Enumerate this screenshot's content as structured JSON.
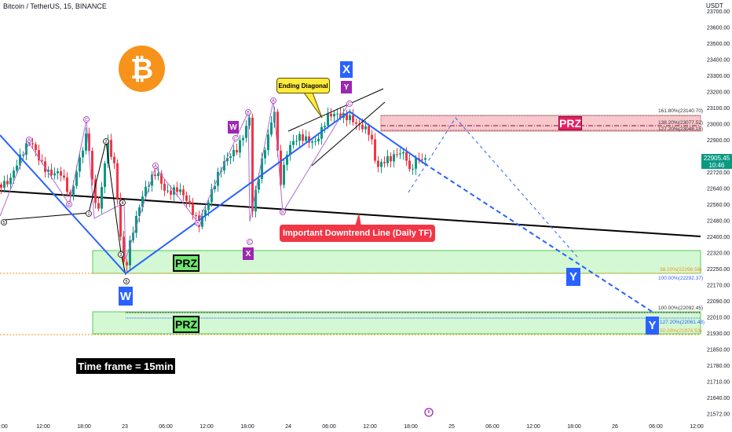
{
  "header": {
    "symbol_line": "Bitcoin / TetherUS, 15, BINANCE",
    "currency": "USDT"
  },
  "logo": {
    "glyph": "₿",
    "color": "#f7931a"
  },
  "price_axis": {
    "ticks": [
      "23700.00",
      "23600.00",
      "23500.00",
      "23400.00",
      "23300.00",
      "23200.00",
      "23100.00",
      "23000.00",
      "22900.00",
      "22800.00",
      "22720.00",
      "22640.00",
      "22560.00",
      "22480.00",
      "22400.00",
      "22320.00",
      "22250.00",
      "22170.00",
      "22090.00",
      "22010.00",
      "21930.00",
      "21850.00",
      "21780.00",
      "21710.00",
      "21640.00",
      "21572.00"
    ],
    "last_price": "22905.45",
    "countdown": "10:46"
  },
  "time_axis": {
    "ticks": [
      "0:00",
      "12:00",
      "18:00",
      "23",
      "06:00",
      "12:00",
      "18:00",
      "24",
      "06:00",
      "12:00",
      "18:00",
      "25",
      "06:00",
      "12:00",
      "18:00",
      "26",
      "06:00",
      "12:00"
    ]
  },
  "fib_levels": {
    "upper": [
      "161.80%(23140.70)",
      "138.20%(23077.52)",
      "127.20%(23048.15)"
    ],
    "middle": [
      "38.20%(22296.56)",
      "100.00%(22292.37)"
    ],
    "lower": [
      "100.00%(22092.45)",
      "127.20%(22061.48)",
      "50.00%(21974.53)"
    ]
  },
  "annotations": {
    "prz_label": "PRZ",
    "wave_W": "W",
    "wave_X_small": "X",
    "wave_X_big": "X",
    "wave_Y_top": "Y",
    "wave_Y_mid": "Y",
    "wave_Y_low": "Y",
    "wave_W_small": "W",
    "ending_diagonal": "Ending Diagonal",
    "downtrend": "Important Downtrend Line (Daily TF)",
    "timeframe": "Time frame = 15min",
    "wave_numbers": [
      "5",
      "1",
      "2",
      "3",
      "4",
      "5"
    ],
    "abc_letters": [
      "A",
      "B",
      "C",
      "A",
      "B",
      "C",
      "A",
      "B",
      "C",
      "D",
      "E"
    ]
  },
  "colors": {
    "up": "#089981",
    "down": "#f23645",
    "trend": "#2962ff",
    "prz_green": "#c8f5c8",
    "prz_red": "#f8c8cc"
  },
  "chart_data": {
    "type": "candlestick",
    "symbol": "BTCUSDT",
    "interval": "15",
    "ylim": [
      21572,
      23700
    ],
    "overlays": [
      "Elliott wave W-X-Y",
      "Fibonacci extension levels",
      "Potential reversal zones"
    ]
  }
}
